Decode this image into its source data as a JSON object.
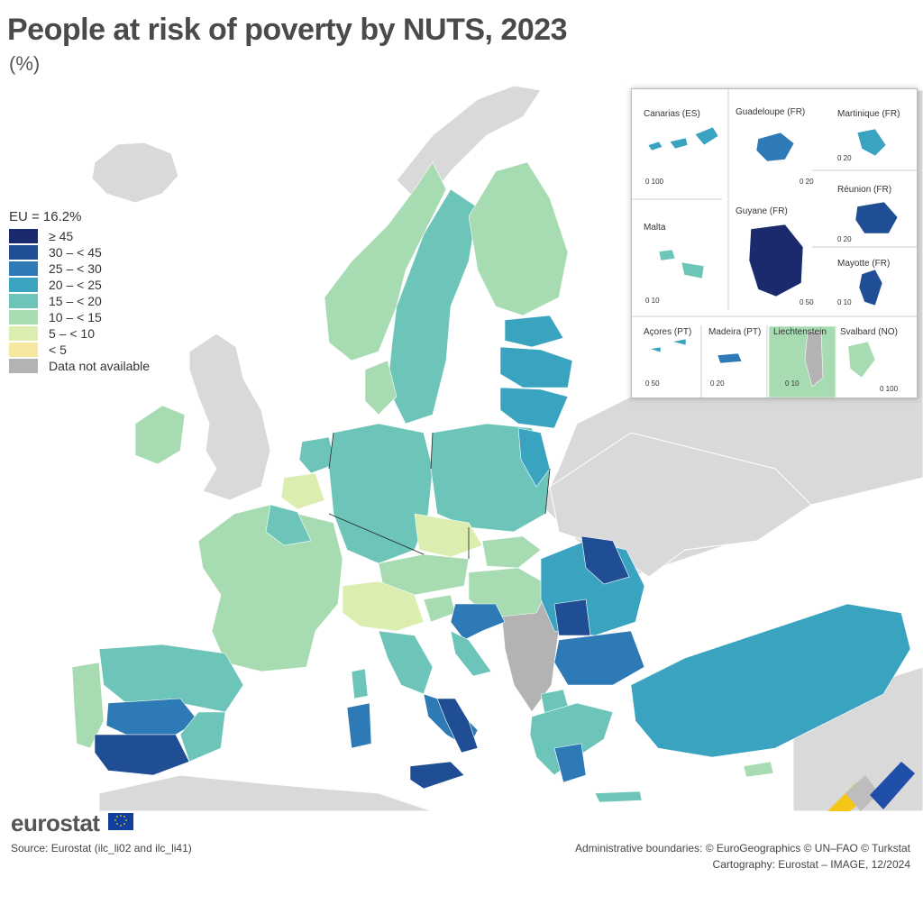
{
  "title": "People at risk of poverty by NUTS, 2023",
  "subtitle": "(%)",
  "legend": {
    "header": "EU = 16.2%",
    "items": [
      {
        "label": "≥ 45",
        "color": "#1a2a6c"
      },
      {
        "label": "30 – < 45",
        "color": "#1f4e94"
      },
      {
        "label": "25 – < 30",
        "color": "#2e7ab6"
      },
      {
        "label": "20 – < 25",
        "color": "#3aa4c0"
      },
      {
        "label": "15 – < 20",
        "color": "#6cc5b8"
      },
      {
        "label": "10 – < 15",
        "color": "#a7dcb3"
      },
      {
        "label": "5 – < 10",
        "color": "#dcedb0"
      },
      {
        "label": "< 5",
        "color": "#f7e8a0"
      },
      {
        "label": "Data not available",
        "color": "#b3b3b3"
      }
    ]
  },
  "insets": {
    "canarias": "Canarias (ES)",
    "guadeloupe": "Guadeloupe (FR)",
    "martinique": "Martinique (FR)",
    "malta": "Malta",
    "guyane": "Guyane (FR)",
    "reunion": "Réunion (FR)",
    "mayotte": "Mayotte (FR)",
    "acores": "Açores (PT)",
    "madeira": "Madeira (PT)",
    "liechtenstein": "Liechtenstein",
    "svalbard": "Svalbard (NO)",
    "scales": {
      "canarias": "0   100",
      "guadeloupe": "0   20",
      "martinique": "0   20",
      "malta": "0   10",
      "guyane": "0  50",
      "reunion": "0   20",
      "mayotte": "0  10",
      "acores": "0   50",
      "madeira": "0  20",
      "liechtenstein": "0   10",
      "svalbard": "0 100"
    }
  },
  "brand": "eurostat",
  "source": "Source: Eurostat (ilc_li02 and ilc_li41)",
  "admin_boundaries": "Administrative boundaries: © EuroGeographics © UN–FAO © Turkstat",
  "cartography": "Cartography: Eurostat – IMAGE, 12/2024",
  "colors": {
    "sea": "#ffffff",
    "non_eu_land": "#d9d9d9",
    "na_grey": "#b3b3b3",
    "accent_yellow": "#f5c518",
    "accent_blue": "#1f4fa8"
  }
}
